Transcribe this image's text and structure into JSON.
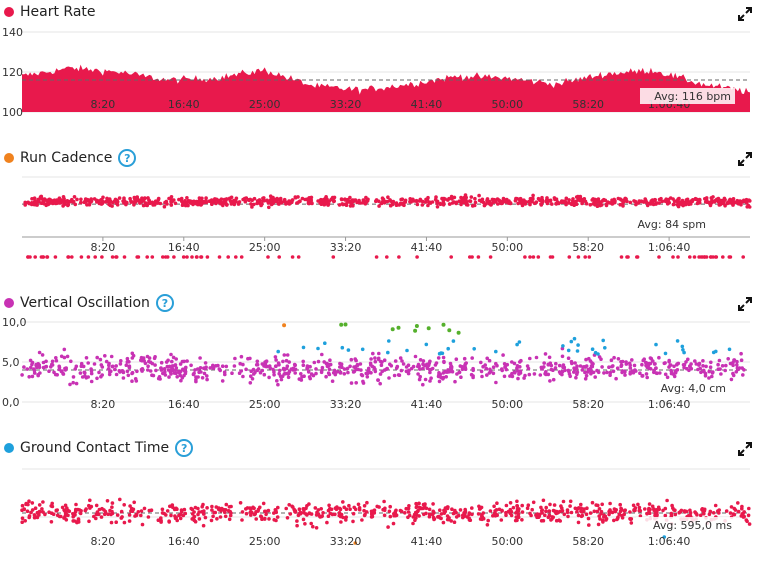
{
  "x_ticks": [
    "8:20",
    "16:40",
    "25:00",
    "33:20",
    "41:40",
    "50:00",
    "58:20",
    "1:06:40"
  ],
  "x_range_seconds": [
    0,
    4500
  ],
  "colors": {
    "heart_rate": "#e8194c",
    "run_cadence": "#f0821e",
    "vertical_oscillation": "#c832b4",
    "ground_contact_time": "#1ea0dc",
    "green": "#55b02c"
  },
  "panels": [
    {
      "title": "Heart Rate",
      "icon": "red-dot",
      "has_help": false,
      "avg_label": "Avg: 116 bpm",
      "y_ticks": [
        "140",
        "120",
        "100"
      ]
    },
    {
      "title": "Run Cadence",
      "icon": "orange-dot",
      "has_help": true,
      "avg_label": "Avg: 84 spm",
      "y_ticks": []
    },
    {
      "title": "Vertical Oscillation",
      "icon": "magenta-dot",
      "has_help": true,
      "avg_label": "Avg: 4,0 cm",
      "y_ticks": [
        "10,0",
        "5,0",
        "0,0"
      ]
    },
    {
      "title": "Ground Contact Time",
      "icon": "blue-dot",
      "has_help": true,
      "avg_label": "Avg: 595,0 ms",
      "y_ticks": []
    }
  ],
  "chart_data": [
    {
      "type": "area",
      "title": "Heart Rate",
      "unit": "bpm",
      "ylim": [
        100,
        140
      ],
      "average": 116,
      "x": [
        0,
        300,
        600,
        900,
        1200,
        1500,
        1800,
        2100,
        2400,
        2700,
        3000,
        3300,
        3600,
        3900,
        4200,
        4500
      ],
      "y": [
        118,
        122,
        120,
        116,
        117,
        121,
        113,
        111,
        114,
        118,
        117,
        114,
        119,
        121,
        114,
        110
      ]
    },
    {
      "type": "scatter",
      "title": "Run Cadence",
      "unit": "spm",
      "average": 84,
      "ylim": [
        0,
        110
      ],
      "pattern": "dense scatter around 84-88 with outliers near 0"
    },
    {
      "type": "scatter",
      "title": "Vertical Oscillation",
      "unit": "cm",
      "ylim": [
        0,
        10
      ],
      "average": 4.0,
      "pattern": "dense scatter around 3-6 with outliers up to 9"
    },
    {
      "type": "scatter",
      "title": "Ground Contact Time",
      "unit": "ms",
      "average": 595.0,
      "pattern": "dense scatter around 580-620 with outliers"
    }
  ]
}
